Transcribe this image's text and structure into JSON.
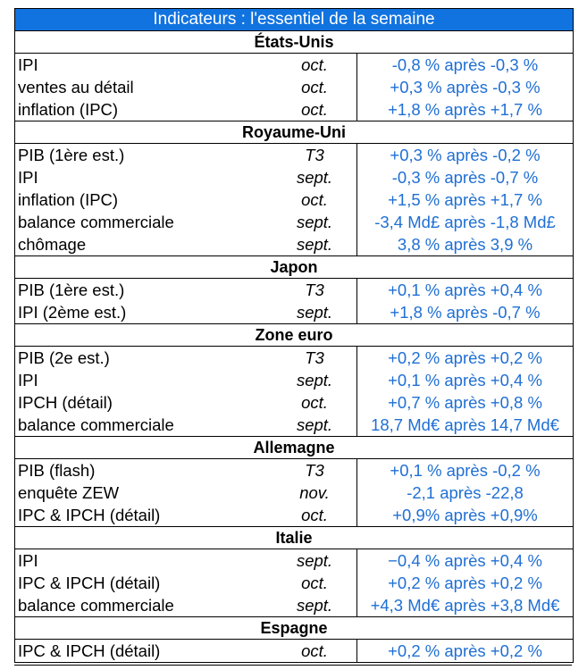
{
  "title": "Indicateurs : l'essentiel de la semaine",
  "sections": [
    {
      "country": "États-Unis",
      "rows": [
        {
          "indicator": "IPI",
          "period": "oct.",
          "value": "-0,8 % après -0,3 %"
        },
        {
          "indicator": "ventes au détail",
          "period": "oct.",
          "value": "+0,3 % après -0,3 %"
        },
        {
          "indicator": "inflation (IPC)",
          "period": "oct.",
          "value": "+1,8 % après +1,7 %"
        }
      ]
    },
    {
      "country": "Royaume-Uni",
      "rows": [
        {
          "indicator": "PIB (1ère est.)",
          "period": "T3",
          "value": "+0,3 % après -0,2 %"
        },
        {
          "indicator": "IPI",
          "period": "sept.",
          "value": "-0,3 % après -0,7 %"
        },
        {
          "indicator": "inflation (IPC)",
          "period": "oct.",
          "value": "+1,5 % après +1,7 %"
        },
        {
          "indicator": "balance commerciale",
          "period": "sept.",
          "value": "-3,4 Md£ après -1,8 Md£"
        },
        {
          "indicator": "chômage",
          "period": "sept.",
          "value": "3,8 % après 3,9 %"
        }
      ]
    },
    {
      "country": "Japon",
      "rows": [
        {
          "indicator": "PIB (1ère est.)",
          "period": "T3",
          "value": "+0,1 % après +0,4 %"
        },
        {
          "indicator": "IPI (2ème est.)",
          "period": "sept.",
          "value": "+1,8 % après -0,7 %"
        }
      ]
    },
    {
      "country": "Zone euro",
      "rows": [
        {
          "indicator": "PIB (2e est.)",
          "period": "T3",
          "value": "+0,2 % après +0,2 %"
        },
        {
          "indicator": "IPI",
          "period": "sept.",
          "value": "+0,1 % après +0,4 %"
        },
        {
          "indicator": "IPCH (détail)",
          "period": "oct.",
          "value": "+0,7 % après +0,8 %"
        },
        {
          "indicator": "balance commerciale",
          "period": "sept.",
          "value": "18,7 Md€ après 14,7 Md€"
        }
      ]
    },
    {
      "country": "Allemagne",
      "rows": [
        {
          "indicator": "PIB (flash)",
          "period": "T3",
          "value": "+0,1 % après -0,2 %"
        },
        {
          "indicator": "enquête ZEW",
          "period": "nov.",
          "value": "-2,1 après -22,8"
        },
        {
          "indicator": "IPC & IPCH (détail)",
          "period": "oct.",
          "value": "+0,9% après +0,9%"
        }
      ]
    },
    {
      "country": "Italie",
      "rows": [
        {
          "indicator": "IPI",
          "period": "sept.",
          "value": "−0,4 % après +0,4 %"
        },
        {
          "indicator": "IPC & IPCH (détail)",
          "period": "oct.",
          "value": "+0,2 % après +0,2 %"
        },
        {
          "indicator": "balance commerciale",
          "period": "sept.",
          "value": "+4,3 Md€ après +3,8 Md€"
        }
      ]
    },
    {
      "country": "Espagne",
      "rows": [
        {
          "indicator": "IPC & IPCH (détail)",
          "period": "oct.",
          "value": "+0,2 % après +0,2 %"
        }
      ]
    }
  ]
}
